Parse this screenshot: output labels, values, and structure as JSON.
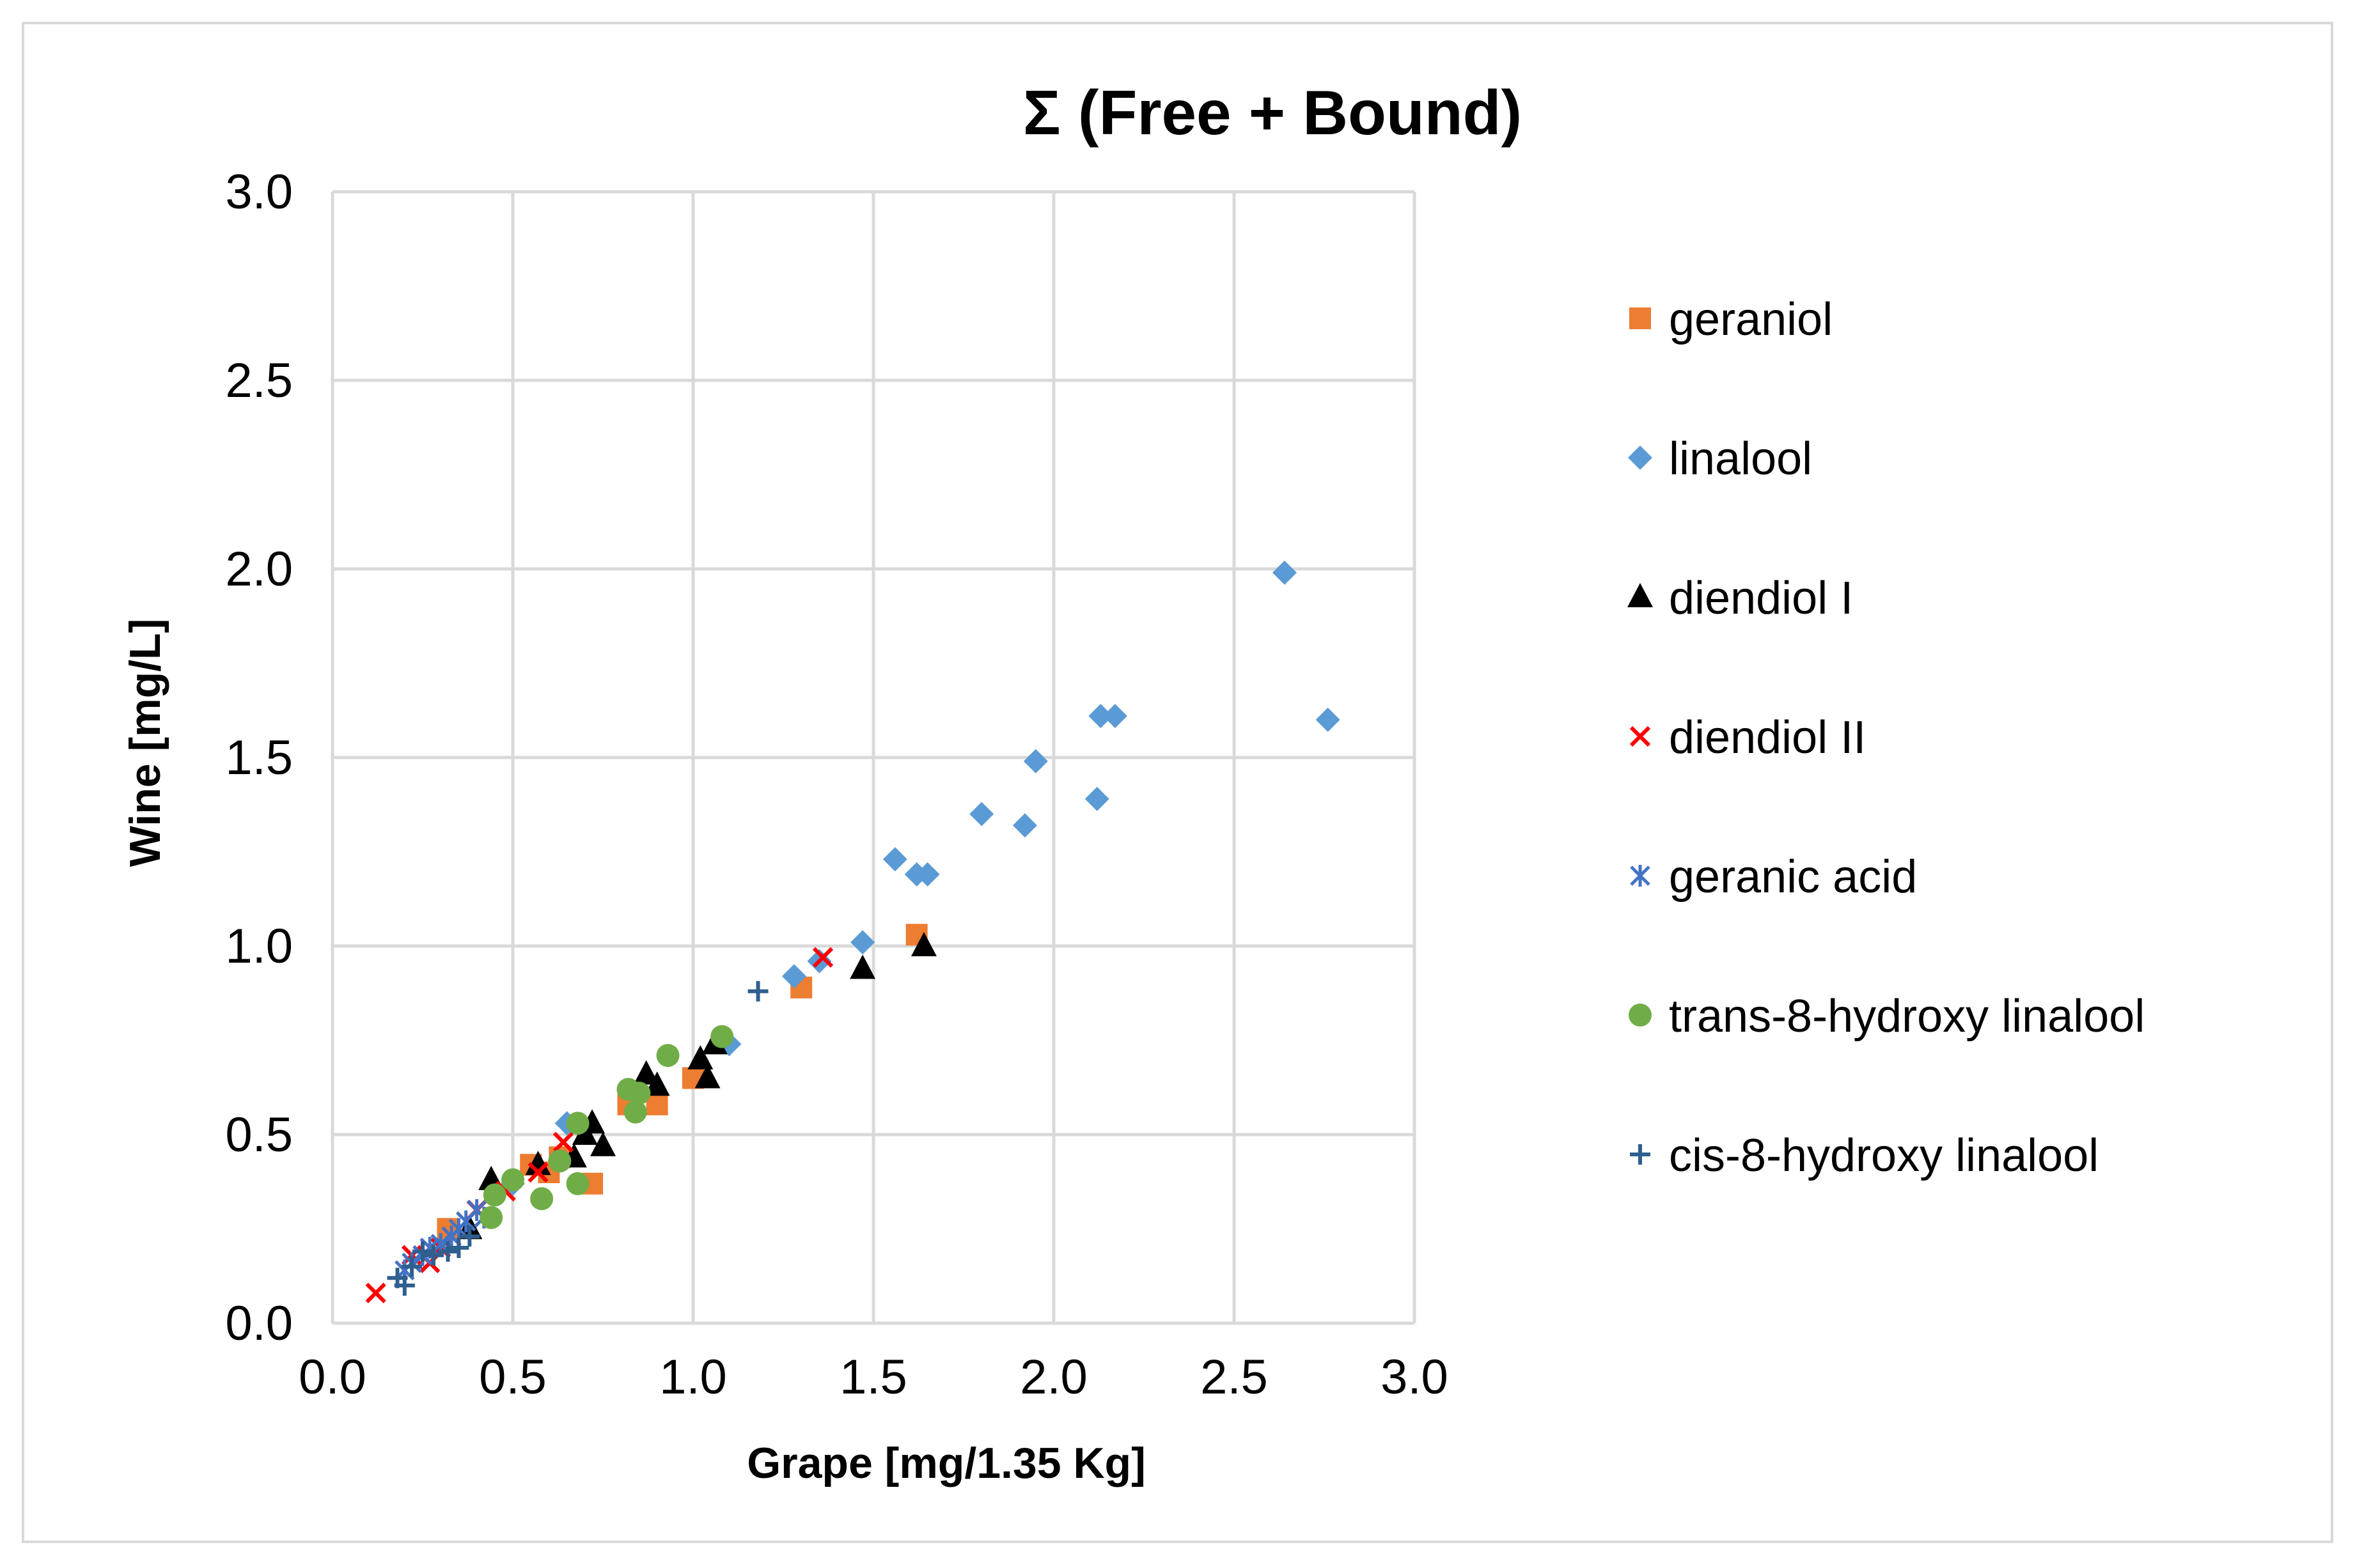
{
  "chart_data": {
    "type": "scatter",
    "title": "Σ (Free + Bound)",
    "xlabel": "Grape [mg/1.35 Kg]",
    "ylabel": "Wine [mg/L]",
    "xlim": [
      0.0,
      3.0
    ],
    "ylim": [
      0.0,
      3.0
    ],
    "xticks": [
      "0.0",
      "0.5",
      "1.0",
      "1.5",
      "2.0",
      "2.5",
      "3.0"
    ],
    "yticks": [
      "0.0",
      "0.5",
      "1.0",
      "1.5",
      "2.0",
      "2.5",
      "3.0"
    ],
    "grid": true,
    "legend_position": "right",
    "series": [
      {
        "name": "geraniol",
        "marker": "square",
        "color": "#ED7D31",
        "points": [
          [
            0.32,
            0.25
          ],
          [
            0.55,
            0.42
          ],
          [
            0.6,
            0.4
          ],
          [
            0.63,
            0.44
          ],
          [
            0.72,
            0.37
          ],
          [
            0.82,
            0.58
          ],
          [
            0.9,
            0.58
          ],
          [
            1.0,
            0.65
          ],
          [
            1.3,
            0.89
          ],
          [
            1.62,
            1.03
          ]
        ]
      },
      {
        "name": "linalool",
        "marker": "diamond",
        "color": "#5B9BD5",
        "points": [
          [
            0.5,
            0.37
          ],
          [
            0.65,
            0.53
          ],
          [
            1.1,
            0.74
          ],
          [
            1.28,
            0.92
          ],
          [
            1.35,
            0.96
          ],
          [
            1.47,
            1.01
          ],
          [
            1.56,
            1.23
          ],
          [
            1.62,
            1.19
          ],
          [
            1.65,
            1.19
          ],
          [
            1.8,
            1.35
          ],
          [
            1.92,
            1.32
          ],
          [
            1.95,
            1.49
          ],
          [
            2.12,
            1.39
          ],
          [
            2.13,
            1.61
          ],
          [
            2.17,
            1.61
          ],
          [
            2.64,
            1.99
          ],
          [
            2.76,
            1.6
          ]
        ]
      },
      {
        "name": "diendiol I",
        "marker": "triangle",
        "color": "#000000",
        "points": [
          [
            0.38,
            0.25
          ],
          [
            0.44,
            0.38
          ],
          [
            0.57,
            0.42
          ],
          [
            0.67,
            0.44
          ],
          [
            0.7,
            0.5
          ],
          [
            0.72,
            0.53
          ],
          [
            0.75,
            0.47
          ],
          [
            0.87,
            0.66
          ],
          [
            0.9,
            0.63
          ],
          [
            1.02,
            0.7
          ],
          [
            1.04,
            0.65
          ],
          [
            1.06,
            0.74
          ],
          [
            1.47,
            0.94
          ],
          [
            1.64,
            1.0
          ]
        ]
      },
      {
        "name": "diendiol II",
        "marker": "x",
        "color": "#FF0000",
        "points": [
          [
            0.12,
            0.08
          ],
          [
            0.22,
            0.18
          ],
          [
            0.27,
            0.16
          ],
          [
            0.3,
            0.2
          ],
          [
            0.4,
            0.3
          ],
          [
            0.48,
            0.35
          ],
          [
            0.57,
            0.4
          ],
          [
            0.64,
            0.48
          ],
          [
            1.36,
            0.97
          ]
        ]
      },
      {
        "name": "geranic acid",
        "marker": "asterisk",
        "color": "#4472C4",
        "points": [
          [
            0.2,
            0.14
          ],
          [
            0.22,
            0.16
          ],
          [
            0.25,
            0.18
          ],
          [
            0.27,
            0.2
          ],
          [
            0.3,
            0.21
          ],
          [
            0.33,
            0.23
          ],
          [
            0.35,
            0.25
          ],
          [
            0.37,
            0.27
          ],
          [
            0.4,
            0.3
          ],
          [
            0.42,
            0.28
          ]
        ]
      },
      {
        "name": "trans-8-hydroxy linalool",
        "marker": "circle",
        "color": "#70AD47",
        "points": [
          [
            0.44,
            0.28
          ],
          [
            0.45,
            0.34
          ],
          [
            0.5,
            0.38
          ],
          [
            0.58,
            0.33
          ],
          [
            0.63,
            0.43
          ],
          [
            0.68,
            0.37
          ],
          [
            0.68,
            0.53
          ],
          [
            0.82,
            0.62
          ],
          [
            0.84,
            0.56
          ],
          [
            0.85,
            0.61
          ],
          [
            0.93,
            0.71
          ],
          [
            1.08,
            0.76
          ]
        ]
      },
      {
        "name": "cis-8-hydroxy linalool",
        "marker": "plus",
        "color": "#2E5F8F",
        "points": [
          [
            0.18,
            0.12
          ],
          [
            0.2,
            0.1
          ],
          [
            0.22,
            0.15
          ],
          [
            0.25,
            0.19
          ],
          [
            0.28,
            0.18
          ],
          [
            0.32,
            0.19
          ],
          [
            0.35,
            0.2
          ],
          [
            0.38,
            0.23
          ],
          [
            1.18,
            0.88
          ]
        ]
      }
    ]
  }
}
